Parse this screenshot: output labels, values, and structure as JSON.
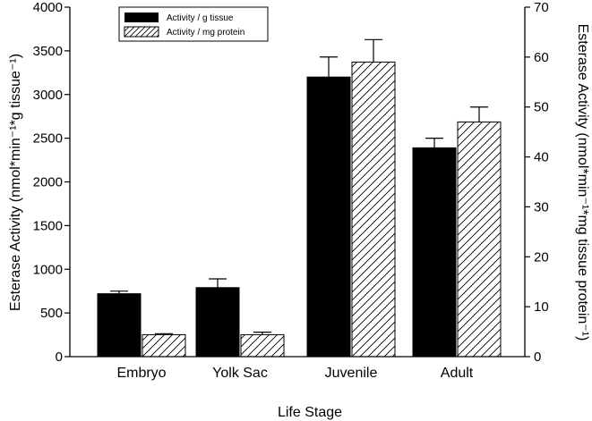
{
  "chart_data": {
    "type": "bar",
    "categories": [
      "Embryo",
      "Yolk Sac",
      "Juvenile",
      "Adult"
    ],
    "series": [
      {
        "name": "Activity / g tissue",
        "axis": "left",
        "fill": "solid",
        "color": "#000000",
        "values": [
          720,
          790,
          3200,
          2390
        ],
        "errors": [
          30,
          100,
          230,
          110
        ]
      },
      {
        "name": "Activity / mg protein",
        "axis": "right",
        "fill": "hatched",
        "color": "#000000",
        "values": [
          4.4,
          4.4,
          59,
          47
        ],
        "errors": [
          0.2,
          0.5,
          4.5,
          3.0
        ]
      }
    ],
    "xlabel": "Life Stage",
    "ylabel": "Esterase Activity (nmol*min⁻¹*g tissue⁻¹)",
    "y2label": "Esterase Activity (nmol*min⁻¹*mg tissue protein⁻¹)",
    "ylim": [
      0,
      4000
    ],
    "y2lim": [
      0,
      70
    ],
    "yticks": [
      0,
      500,
      1000,
      1500,
      2000,
      2500,
      3000,
      3500,
      4000
    ],
    "y2ticks": [
      0,
      10,
      20,
      30,
      40,
      50,
      60,
      70
    ],
    "legend_position": "top-left",
    "grid": false
  }
}
